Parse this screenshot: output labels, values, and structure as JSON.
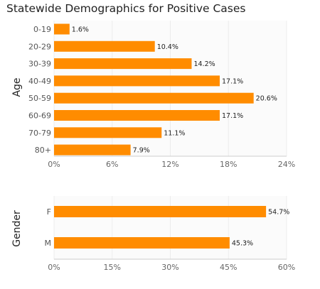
{
  "title": "Statewide Demographics for Positive Cases",
  "colors": {
    "bar": "#FF8C00",
    "grid": "#ececec",
    "axis": "#cccccc"
  },
  "chart_data": [
    {
      "type": "bar",
      "orientation": "horizontal",
      "ylabel": "Age",
      "categories": [
        "0-19",
        "20-29",
        "30-39",
        "40-49",
        "50-59",
        "60-69",
        "70-79",
        "80+"
      ],
      "values": [
        1.6,
        10.4,
        14.2,
        17.1,
        20.6,
        17.1,
        11.1,
        7.9
      ],
      "data_labels": [
        "1.6%",
        "10.4%",
        "14.2%",
        "17.1%",
        "20.6%",
        "17.1%",
        "11.1%",
        "7.9%"
      ],
      "xlim": [
        0,
        24
      ],
      "xticks": [
        "0%",
        "6%",
        "12%",
        "18%",
        "24%"
      ],
      "grid": true
    },
    {
      "type": "bar",
      "orientation": "horizontal",
      "ylabel": "Gender",
      "categories": [
        "F",
        "M"
      ],
      "values": [
        54.7,
        45.3
      ],
      "data_labels": [
        "54.7%",
        "45.3%"
      ],
      "xlim": [
        0,
        60
      ],
      "xticks": [
        "0%",
        "15%",
        "30%",
        "45%",
        "60%"
      ],
      "grid": true
    }
  ]
}
